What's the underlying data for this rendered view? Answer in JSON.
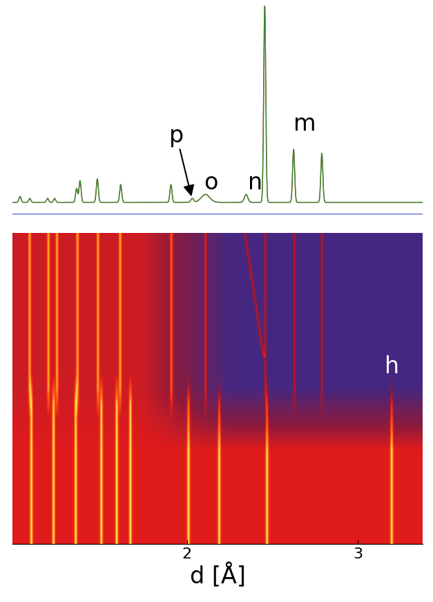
{
  "chart_data": [
    {
      "type": "profile",
      "tick_labels": false,
      "xlim": [
        0.98,
        3.38
      ],
      "ylim": [
        -15,
        103
      ],
      "series": [
        {
          "color": "#e04848",
          "line_style": "solid",
          "x": [
            1.024,
            1.081,
            1.185,
            1.226,
            1.355,
            1.375,
            1.476,
            1.613,
            1.907,
            2.032,
            2.109,
            2.347,
            2.456,
            2.625,
            2.79
          ],
          "values": [
            3,
            2,
            2,
            2,
            7,
            11,
            12,
            9,
            9,
            2,
            4,
            4,
            100,
            27,
            25
          ],
          "widths": [
            0.006,
            0.006,
            0.006,
            0.006,
            0.006,
            0.006,
            0.006,
            0.006,
            0.006,
            0.008,
            0.025,
            0.01,
            0.006,
            0.006,
            0.006
          ]
        },
        {
          "color": "#2f8a2f",
          "line_style": "solid",
          "x": [
            1.024,
            1.081,
            1.185,
            1.226,
            1.355,
            1.375,
            1.476,
            1.613,
            1.907,
            2.032,
            2.109,
            2.347,
            2.456,
            2.625,
            2.79
          ],
          "values": [
            3,
            2,
            2,
            2,
            7,
            11,
            12,
            9,
            9,
            2,
            4,
            4,
            100,
            27,
            25
          ],
          "widths": [
            0.006,
            0.006,
            0.006,
            0.006,
            0.006,
            0.006,
            0.006,
            0.006,
            0.006,
            0.008,
            0.025,
            0.01,
            0.006,
            0.006,
            0.006
          ]
        }
      ],
      "difference": {
        "color": "#3050c0",
        "level": -6
      },
      "annotations": [
        {
          "text": "p",
          "x": 1.94,
          "y": 28,
          "arrow_to": [
            2.03,
            2
          ]
        },
        {
          "text": "o",
          "x": 2.14,
          "y": 4
        },
        {
          "text": "n",
          "x": 2.4,
          "y": 4
        },
        {
          "text": "m",
          "x": 2.69,
          "y": 34
        }
      ]
    },
    {
      "type": "heatmap",
      "tick_labels": "x",
      "xlabel": "d [Å]",
      "xlim": [
        0.98,
        3.38
      ],
      "xticks": [
        2,
        3
      ],
      "ylim": [
        1,
        0
      ],
      "upper_peaks": {
        "x": [
          1.08,
          1.19,
          1.24,
          1.36,
          1.48,
          1.61,
          1.91,
          2.11,
          2.46,
          2.63,
          2.79
        ],
        "rows": [
          0,
          0.6
        ]
      },
      "lower_peaks": {
        "x": [
          1.09,
          1.22,
          1.35,
          1.5,
          1.59,
          1.67,
          2.01,
          2.19,
          2.47,
          3.2
        ],
        "rows": [
          0.45,
          1
        ]
      },
      "shifting_peak": {
        "x": [
          2.34,
          2.45
        ],
        "rows": [
          0,
          0.4
        ]
      },
      "annotations": [
        {
          "text": "h",
          "x": 3.2,
          "y": 0.43
        }
      ]
    }
  ]
}
